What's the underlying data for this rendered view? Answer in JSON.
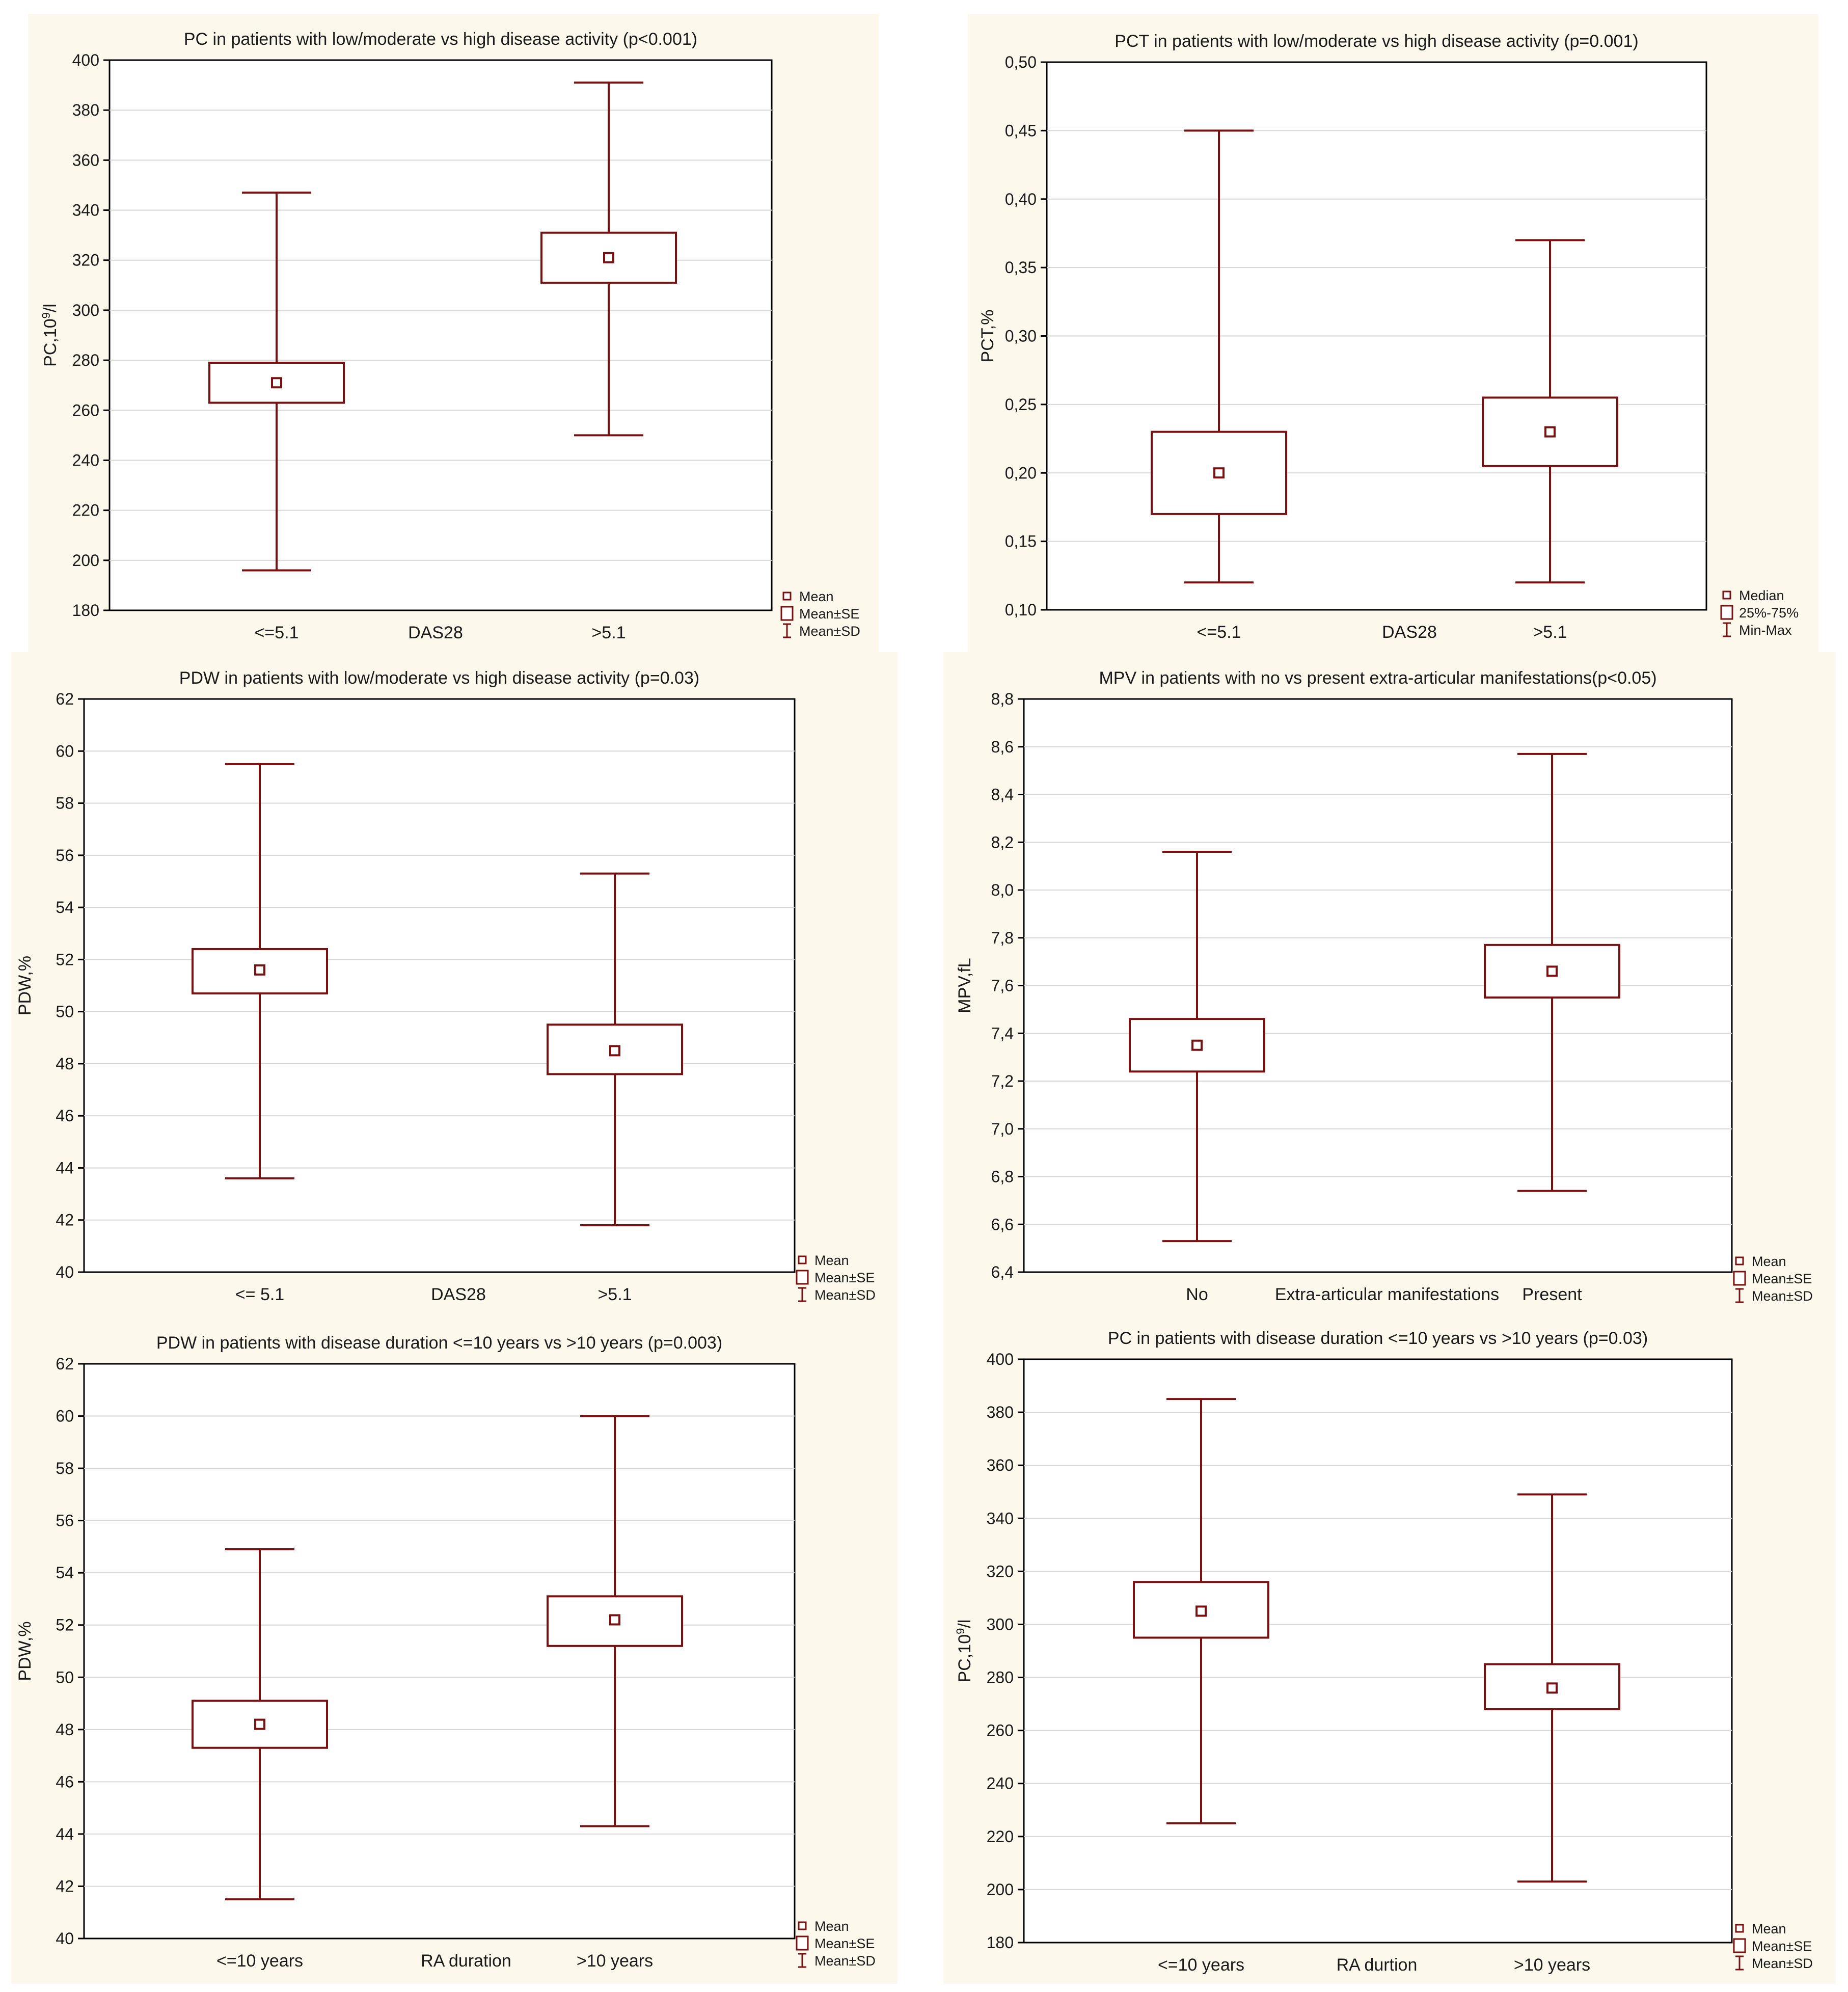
{
  "colors": {
    "series": "#7a1010",
    "panel_background": "#fdf8ec",
    "plot_background": "#ffffff",
    "grid": "#d7d7d7"
  },
  "chart_data": [
    {
      "type": "box",
      "title": "PC in patients with low/moderate vs high disease activity (p<0.001)",
      "ylabel": "PC,10",
      "ylabel_sup": "9",
      "ylabel_tail": "/l",
      "xlabel": "DAS28",
      "categories": [
        "<=5.1",
        ">5.1"
      ],
      "ylim": [
        180,
        400
      ],
      "yticks": [
        180,
        200,
        220,
        240,
        260,
        280,
        300,
        320,
        340,
        360,
        380,
        400
      ],
      "ytick_labels": [
        "180",
        "200",
        "220",
        "240",
        "260",
        "280",
        "300",
        "320",
        "340",
        "360",
        "380",
        "400"
      ],
      "groups": [
        {
          "category": "<=5.1",
          "center": 271,
          "box_low": 263,
          "box_high": 279,
          "whisker_low": 196,
          "whisker_high": 347
        },
        {
          "category": ">5.1",
          "center": 321,
          "box_low": 311,
          "box_high": 331,
          "whisker_low": 250,
          "whisker_high": 391
        }
      ],
      "legend": [
        "Mean",
        "Mean±SE",
        "Mean±SD"
      ],
      "grid": true,
      "legend_position": "bottom-right"
    },
    {
      "type": "box",
      "title": "PCT in patients with low/moderate vs high disease activity (p=0.001)",
      "ylabel": "PCT,%",
      "xlabel": "DAS28",
      "categories": [
        "<=5.1",
        ">5.1"
      ],
      "ylim": [
        0.1,
        0.5
      ],
      "yticks": [
        0.1,
        0.15,
        0.2,
        0.25,
        0.3,
        0.35,
        0.4,
        0.45,
        0.5
      ],
      "ytick_labels": [
        "0,10",
        "0,15",
        "0,20",
        "0,25",
        "0,30",
        "0,35",
        "0,40",
        "0,45",
        "0,50"
      ],
      "groups": [
        {
          "category": "<=5.1",
          "center": 0.2,
          "box_low": 0.17,
          "box_high": 0.23,
          "whisker_low": 0.12,
          "whisker_high": 0.45
        },
        {
          "category": ">5.1",
          "center": 0.23,
          "box_low": 0.205,
          "box_high": 0.255,
          "whisker_low": 0.12,
          "whisker_high": 0.37
        }
      ],
      "legend": [
        "Median",
        "25%-75%",
        "Min-Max"
      ],
      "grid": true,
      "legend_position": "bottom-right"
    },
    {
      "type": "box",
      "title": "PDW in patients with low/moderate vs high disease activity (p=0.03)",
      "ylabel": "PDW,%",
      "xlabel": "DAS28",
      "categories": [
        "<= 5.1",
        ">5.1"
      ],
      "ylim": [
        40,
        62
      ],
      "yticks": [
        40,
        42,
        44,
        46,
        48,
        50,
        52,
        54,
        56,
        58,
        60,
        62
      ],
      "ytick_labels": [
        "40",
        "42",
        "44",
        "46",
        "48",
        "50",
        "52",
        "54",
        "56",
        "58",
        "60",
        "62"
      ],
      "groups": [
        {
          "category": "<= 5.1",
          "center": 51.6,
          "box_low": 50.7,
          "box_high": 52.4,
          "whisker_low": 43.6,
          "whisker_high": 59.5
        },
        {
          "category": ">5.1",
          "center": 48.5,
          "box_low": 47.6,
          "box_high": 49.5,
          "whisker_low": 41.8,
          "whisker_high": 55.3
        }
      ],
      "legend": [
        "Mean",
        "Mean±SE",
        "Mean±SD"
      ],
      "grid": true,
      "legend_position": "bottom-right"
    },
    {
      "type": "box",
      "title": "MPV in patients with no vs present extra-articular manifestations(p<0.05)",
      "ylabel": "MPV,fL",
      "xlabel": "Extra-articular manifestations",
      "categories": [
        "No",
        "Present"
      ],
      "ylim": [
        6.4,
        8.8
      ],
      "yticks": [
        6.4,
        6.6,
        6.8,
        7.0,
        7.2,
        7.4,
        7.6,
        7.8,
        8.0,
        8.2,
        8.4,
        8.6,
        8.8
      ],
      "ytick_labels": [
        "6,4",
        "6,6",
        "6,8",
        "7,0",
        "7,2",
        "7,4",
        "7,6",
        "7,8",
        "8,0",
        "8,2",
        "8,4",
        "8,6",
        "8,8"
      ],
      "groups": [
        {
          "category": "No",
          "center": 7.35,
          "box_low": 7.24,
          "box_high": 7.46,
          "whisker_low": 6.53,
          "whisker_high": 8.16
        },
        {
          "category": "Present",
          "center": 7.66,
          "box_low": 7.55,
          "box_high": 7.77,
          "whisker_low": 6.74,
          "whisker_high": 8.57
        }
      ],
      "legend": [
        "Mean",
        "Mean±SE",
        "Mean±SD"
      ],
      "grid": true,
      "legend_position": "bottom-right"
    },
    {
      "type": "box",
      "title": "PDW in patients with disease duration <=10 years vs >10 years (p=0.003)",
      "ylabel": "PDW,%",
      "xlabel": "RA duration",
      "categories": [
        "<=10 years",
        ">10 years"
      ],
      "ylim": [
        40,
        62
      ],
      "yticks": [
        40,
        42,
        44,
        46,
        48,
        50,
        52,
        54,
        56,
        58,
        60,
        62
      ],
      "ytick_labels": [
        "40",
        "42",
        "44",
        "46",
        "48",
        "50",
        "52",
        "54",
        "56",
        "58",
        "60",
        "62"
      ],
      "groups": [
        {
          "category": "<=10 years",
          "center": 48.2,
          "box_low": 47.3,
          "box_high": 49.1,
          "whisker_low": 41.5,
          "whisker_high": 54.9
        },
        {
          "category": ">10 years",
          "center": 52.2,
          "box_low": 51.2,
          "box_high": 53.1,
          "whisker_low": 44.3,
          "whisker_high": 60.0
        }
      ],
      "legend": [
        "Mean",
        "Mean±SE",
        "Mean±SD"
      ],
      "grid": true,
      "legend_position": "bottom-right"
    },
    {
      "type": "box",
      "title": "PC in patients with disease duration <=10 years vs >10 years (p=0.03)",
      "ylabel": "PC,10",
      "ylabel_sup": "9",
      "ylabel_tail": "/l",
      "xlabel": "RA durtion",
      "categories": [
        "<=10 years",
        ">10 years"
      ],
      "ylim": [
        180,
        400
      ],
      "yticks": [
        180,
        200,
        220,
        240,
        260,
        280,
        300,
        320,
        340,
        360,
        380,
        400
      ],
      "ytick_labels": [
        "180",
        "200",
        "220",
        "240",
        "260",
        "280",
        "300",
        "320",
        "340",
        "360",
        "380",
        "400"
      ],
      "groups": [
        {
          "category": "<=10 years",
          "center": 305,
          "box_low": 295,
          "box_high": 316,
          "whisker_low": 225,
          "whisker_high": 385
        },
        {
          "category": ">10 years",
          "center": 276,
          "box_low": 268,
          "box_high": 285,
          "whisker_low": 203,
          "whisker_high": 349
        }
      ],
      "legend": [
        "Mean",
        "Mean±SE",
        "Mean±SD"
      ],
      "grid": true,
      "legend_position": "bottom-right"
    }
  ]
}
